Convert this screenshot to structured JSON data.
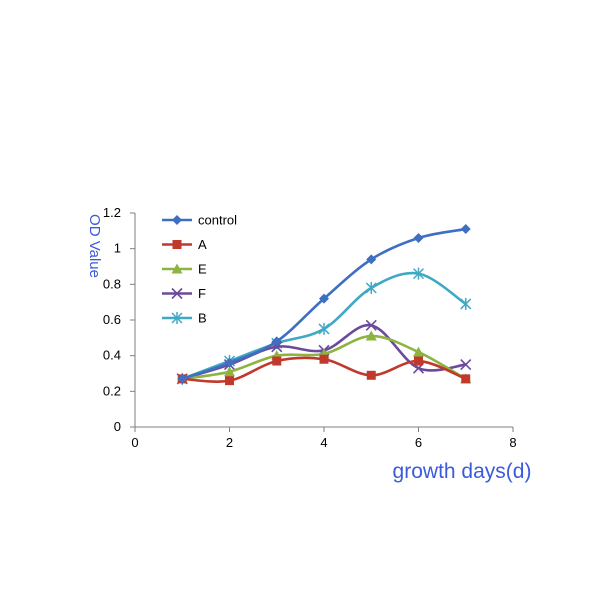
{
  "chart_data": {
    "type": "line",
    "title": "",
    "xlabel": "growth days(d)",
    "ylabel": "OD Value",
    "xlim": [
      0,
      8
    ],
    "ylim": [
      0,
      1.2
    ],
    "xticks": [
      "0",
      "2",
      "4",
      "6",
      "8"
    ],
    "yticks": [
      "0",
      "0.2",
      "0.4",
      "0.6",
      "0.8",
      "1",
      "1.2"
    ],
    "grid": false,
    "legend_position": "top-left",
    "smooth": true,
    "x": [
      1,
      2,
      3,
      4,
      5,
      6,
      7
    ],
    "series": [
      {
        "name": "control",
        "color": "#3f6fc0",
        "marker": "diamond",
        "values": [
          0.27,
          0.36,
          0.48,
          0.72,
          0.94,
          1.06,
          1.11
        ]
      },
      {
        "name": "A",
        "color": "#c0392b",
        "marker": "square",
        "values": [
          0.27,
          0.26,
          0.37,
          0.38,
          0.29,
          0.37,
          0.27
        ]
      },
      {
        "name": "E",
        "color": "#8db440",
        "marker": "triangle",
        "values": [
          0.27,
          0.31,
          0.4,
          0.41,
          0.51,
          0.42,
          0.27
        ]
      },
      {
        "name": "F",
        "color": "#6b4a9c",
        "marker": "x",
        "values": [
          0.27,
          0.35,
          0.45,
          0.43,
          0.57,
          0.33,
          0.35
        ]
      },
      {
        "name": "B",
        "color": "#3fa9c5",
        "marker": "star",
        "values": [
          0.27,
          0.37,
          0.47,
          0.55,
          0.78,
          0.86,
          0.69
        ]
      }
    ]
  }
}
